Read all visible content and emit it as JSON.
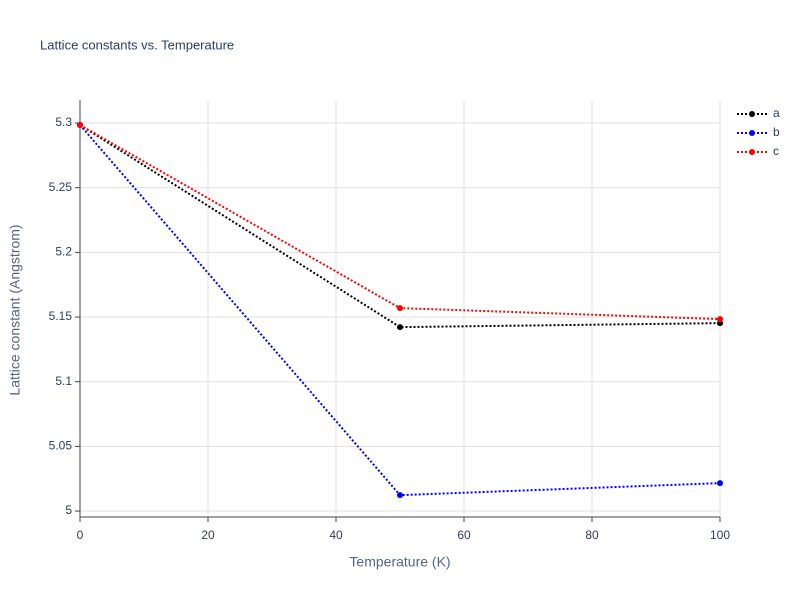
{
  "chart_data": {
    "type": "line",
    "title": "Lattice constants vs. Temperature",
    "x_label": "Temperature (K)",
    "y_label": "Lattice constant (Angstrom)",
    "x": [
      0,
      50,
      100
    ],
    "series": [
      {
        "name": "a",
        "color": "#000000",
        "values": [
          5.2985,
          5.1422,
          5.1453
        ]
      },
      {
        "name": "b",
        "color": "#0000ff",
        "values": [
          5.2985,
          5.0123,
          5.0216
        ]
      },
      {
        "name": "c",
        "color": "#ff0000",
        "values": [
          5.2985,
          5.1569,
          5.1484
        ]
      }
    ],
    "xlim": [
      0,
      100
    ],
    "xticks": [
      0,
      20,
      40,
      60,
      80,
      100
    ],
    "ylim": [
      4.9954,
      5.3178
    ],
    "yticks": [
      5,
      5.05,
      5.1,
      5.15,
      5.2,
      5.25,
      5.3
    ],
    "grid": true,
    "legend": "top-right",
    "line_style": "dotted"
  }
}
